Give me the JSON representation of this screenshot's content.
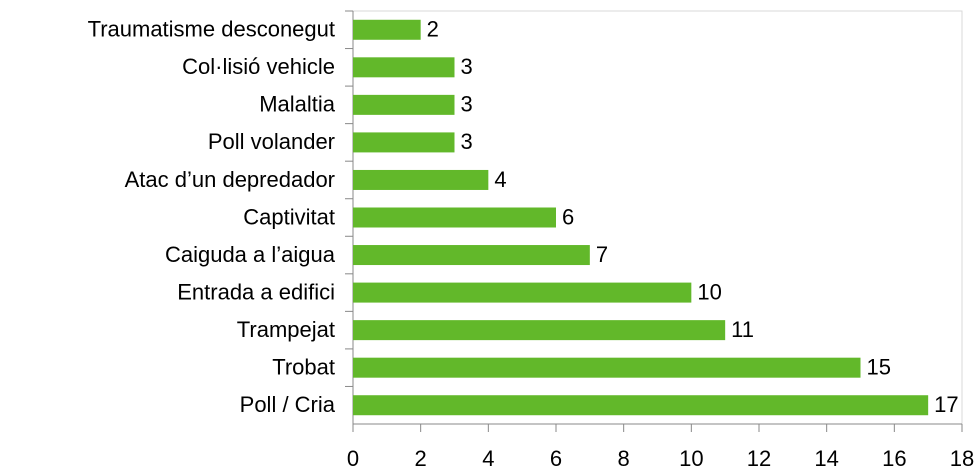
{
  "chart_data": {
    "type": "barh",
    "categories": [
      "Traumatisme desconegut",
      "Col·lisió vehicle",
      "Malaltia",
      "Poll volander",
      "Atac d’un depredador",
      "Captivitat",
      "Caiguda a l’aigua",
      "Entrada a edifici",
      "Trampejat",
      "Trobat",
      "Poll / Cria"
    ],
    "values": [
      2,
      3,
      3,
      3,
      4,
      6,
      7,
      10,
      11,
      15,
      17
    ],
    "color": "#62b82a",
    "xlim": [
      0,
      18
    ],
    "xticks": [
      0,
      2,
      4,
      6,
      8,
      10,
      12,
      14,
      16,
      18
    ],
    "grid": false
  }
}
